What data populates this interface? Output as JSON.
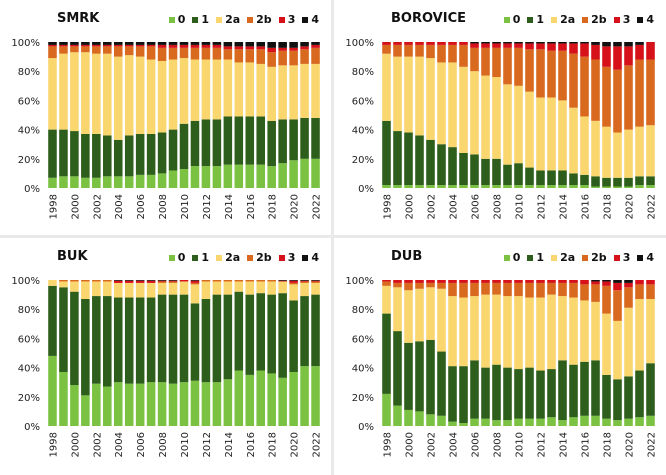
{
  "chart_data": [
    {
      "type": "bar",
      "stacked": true,
      "title": "SMRK",
      "categories": [
        "1998",
        "1999",
        "2000",
        "2001",
        "2002",
        "2003",
        "2004",
        "2005",
        "2006",
        "2007",
        "2008",
        "2009",
        "2010",
        "2011",
        "2012",
        "2013",
        "2014",
        "2015",
        "2016",
        "2017",
        "2018",
        "2019",
        "2020",
        "2021",
        "2022"
      ],
      "xtick_labels": [
        "1998",
        "2000",
        "2002",
        "2004",
        "2006",
        "2008",
        "2010",
        "2012",
        "2014",
        "2016",
        "2018",
        "2020",
        "2022"
      ],
      "yticks": [
        "0%",
        "20%",
        "40%",
        "60%",
        "80%",
        "100%"
      ],
      "ylim": [
        0,
        100
      ],
      "legend_position": "top-right",
      "series": [
        {
          "name": "0",
          "values": [
            7,
            8,
            8,
            7,
            7,
            8,
            8,
            8,
            9,
            9,
            10,
            12,
            13,
            15,
            15,
            15,
            16,
            16,
            16,
            16,
            15,
            17,
            19,
            20,
            20
          ]
        },
        {
          "name": "1",
          "values": [
            33,
            32,
            31,
            30,
            30,
            28,
            25,
            28,
            28,
            28,
            28,
            28,
            31,
            31,
            32,
            32,
            33,
            33,
            33,
            33,
            31,
            30,
            28,
            28,
            28
          ]
        },
        {
          "name": "2a",
          "values": [
            49,
            52,
            54,
            56,
            55,
            56,
            57,
            55,
            53,
            51,
            49,
            48,
            45,
            42,
            41,
            41,
            39,
            37,
            37,
            36,
            37,
            37,
            37,
            37,
            37
          ]
        },
        {
          "name": "2b",
          "values": [
            8,
            5,
            4,
            4,
            5,
            5,
            7,
            6,
            7,
            9,
            9,
            8,
            7,
            8,
            8,
            8,
            7,
            9,
            9,
            10,
            10,
            10,
            10,
            10,
            11
          ]
        },
        {
          "name": "3",
          "values": [
            1,
            1,
            1,
            1,
            1,
            1,
            1,
            1,
            1,
            1,
            2,
            2,
            2,
            2,
            2,
            2,
            2,
            2,
            2,
            2,
            3,
            2,
            2,
            2,
            2
          ]
        },
        {
          "name": "4",
          "values": [
            2,
            2,
            2,
            2,
            2,
            2,
            2,
            2,
            2,
            2,
            2,
            2,
            2,
            2,
            2,
            2,
            3,
            3,
            3,
            3,
            4,
            4,
            4,
            3,
            2
          ]
        }
      ]
    },
    {
      "type": "bar",
      "stacked": true,
      "title": "BOROVICE",
      "categories": [
        "1998",
        "1999",
        "2000",
        "2001",
        "2002",
        "2003",
        "2004",
        "2005",
        "2006",
        "2007",
        "2008",
        "2009",
        "2010",
        "2011",
        "2012",
        "2013",
        "2014",
        "2015",
        "2016",
        "2017",
        "2018",
        "2019",
        "2020",
        "2021",
        "2022"
      ],
      "xtick_labels": [
        "1998",
        "2000",
        "2002",
        "2004",
        "2006",
        "2008",
        "2010",
        "2012",
        "2014",
        "2016",
        "2018",
        "2020",
        "2022"
      ],
      "yticks": [
        "0%",
        "20%",
        "40%",
        "60%",
        "80%",
        "100%"
      ],
      "ylim": [
        0,
        100
      ],
      "legend_position": "top-right",
      "series": [
        {
          "name": "0",
          "values": [
            2,
            2,
            2,
            2,
            2,
            2,
            2,
            2,
            2,
            2,
            2,
            2,
            2,
            2,
            2,
            2,
            2,
            2,
            2,
            1,
            1,
            1,
            1,
            2,
            2
          ]
        },
        {
          "name": "1",
          "values": [
            44,
            37,
            36,
            34,
            31,
            28,
            26,
            22,
            21,
            18,
            18,
            14,
            15,
            12,
            10,
            10,
            10,
            8,
            7,
            7,
            6,
            6,
            6,
            6,
            6
          ]
        },
        {
          "name": "2a",
          "values": [
            46,
            51,
            52,
            54,
            56,
            56,
            58,
            59,
            57,
            57,
            56,
            55,
            53,
            52,
            50,
            50,
            48,
            45,
            40,
            38,
            35,
            31,
            33,
            34,
            35
          ]
        },
        {
          "name": "2b",
          "values": [
            6,
            8,
            8,
            8,
            9,
            12,
            12,
            15,
            16,
            19,
            20,
            25,
            26,
            29,
            33,
            32,
            34,
            37,
            41,
            42,
            41,
            43,
            44,
            46,
            45
          ]
        },
        {
          "name": "3",
          "values": [
            2,
            2,
            2,
            2,
            2,
            2,
            2,
            2,
            3,
            3,
            3,
            3,
            3,
            4,
            4,
            5,
            5,
            7,
            9,
            10,
            14,
            16,
            13,
            10,
            12
          ]
        },
        {
          "name": "4",
          "values": [
            0,
            0,
            0,
            0,
            0,
            0,
            0,
            0,
            1,
            1,
            1,
            1,
            1,
            1,
            1,
            1,
            1,
            1,
            1,
            2,
            3,
            3,
            3,
            2,
            0
          ]
        }
      ]
    },
    {
      "type": "bar",
      "stacked": true,
      "title": "BUK",
      "categories": [
        "1998",
        "1999",
        "2000",
        "2001",
        "2002",
        "2003",
        "2004",
        "2005",
        "2006",
        "2007",
        "2008",
        "2009",
        "2010",
        "2011",
        "2012",
        "2013",
        "2014",
        "2015",
        "2016",
        "2017",
        "2018",
        "2019",
        "2020",
        "2021",
        "2022"
      ],
      "xtick_labels": [
        "1998",
        "2000",
        "2002",
        "2004",
        "2006",
        "2008",
        "2010",
        "2012",
        "2014",
        "2016",
        "2018",
        "2020",
        "2022"
      ],
      "yticks": [
        "0%",
        "20%",
        "40%",
        "60%",
        "80%",
        "100%"
      ],
      "ylim": [
        0,
        100
      ],
      "legend_position": "top-right",
      "series": [
        {
          "name": "0",
          "values": [
            48,
            37,
            28,
            21,
            29,
            27,
            30,
            29,
            29,
            30,
            30,
            29,
            30,
            31,
            30,
            30,
            32,
            38,
            35,
            38,
            36,
            33,
            37,
            41,
            41
          ]
        },
        {
          "name": "1",
          "values": [
            48,
            58,
            64,
            66,
            60,
            62,
            58,
            59,
            59,
            58,
            60,
            61,
            60,
            53,
            57,
            60,
            58,
            54,
            55,
            53,
            54,
            58,
            49,
            48,
            49
          ]
        },
        {
          "name": "2a",
          "values": [
            4,
            4,
            7,
            12,
            10,
            10,
            10,
            10,
            10,
            10,
            8,
            8,
            9,
            13,
            12,
            9,
            9,
            7,
            9,
            8,
            9,
            8,
            11,
            9,
            8
          ]
        },
        {
          "name": "2b",
          "values": [
            0,
            1,
            1,
            1,
            1,
            1,
            0,
            0,
            0,
            0,
            1,
            1,
            0,
            1,
            1,
            1,
            1,
            1,
            1,
            1,
            1,
            0,
            1,
            1,
            1
          ]
        },
        {
          "name": "3",
          "values": [
            0,
            0,
            0,
            0,
            0,
            0,
            1.5,
            1.5,
            1.5,
            1.5,
            0.5,
            0.5,
            1,
            1.5,
            0,
            0,
            0,
            0,
            0,
            0,
            0,
            0.5,
            1.5,
            0.5,
            0.5
          ]
        },
        {
          "name": "4",
          "values": [
            0,
            0,
            0,
            0,
            0,
            0,
            0.5,
            0.5,
            0.5,
            0.5,
            0.5,
            0.5,
            0,
            0.5,
            0,
            0,
            0,
            0,
            0,
            0,
            0,
            0.5,
            0.5,
            0.5,
            0.5
          ]
        }
      ]
    },
    {
      "type": "bar",
      "stacked": true,
      "title": "DUB",
      "categories": [
        "1998",
        "1999",
        "2000",
        "2001",
        "2002",
        "2003",
        "2004",
        "2005",
        "2006",
        "2007",
        "2008",
        "2009",
        "2010",
        "2011",
        "2012",
        "2013",
        "2014",
        "2015",
        "2016",
        "2017",
        "2018",
        "2019",
        "2020",
        "2021",
        "2022"
      ],
      "xtick_labels": [
        "1998",
        "2000",
        "2002",
        "2004",
        "2006",
        "2008",
        "2010",
        "2012",
        "2014",
        "2016",
        "2018",
        "2020",
        "2022"
      ],
      "yticks": [
        "0%",
        "20%",
        "40%",
        "60%",
        "80%",
        "100%"
      ],
      "ylim": [
        0,
        100
      ],
      "legend_position": "top-right",
      "series": [
        {
          "name": "0",
          "values": [
            22,
            14,
            11,
            10,
            8,
            7,
            3,
            2,
            5,
            5,
            4,
            4,
            5,
            5,
            5,
            6,
            4,
            6,
            7,
            7,
            5,
            4,
            5,
            6,
            7
          ]
        },
        {
          "name": "1",
          "values": [
            55,
            51,
            46,
            48,
            51,
            44,
            38,
            39,
            40,
            35,
            38,
            36,
            34,
            35,
            33,
            33,
            41,
            36,
            37,
            38,
            30,
            28,
            29,
            32,
            36
          ]
        },
        {
          "name": "2a",
          "values": [
            19,
            30,
            36,
            36,
            36,
            43,
            48,
            47,
            44,
            50,
            48,
            49,
            50,
            48,
            50,
            51,
            44,
            46,
            42,
            40,
            42,
            40,
            47,
            49,
            44
          ]
        },
        {
          "name": "2b",
          "values": [
            3,
            3,
            5,
            4,
            3,
            4,
            9,
            10,
            9,
            8,
            8,
            9,
            9,
            10,
            10,
            8,
            9,
            10,
            11,
            12,
            19,
            21,
            14,
            10,
            10
          ]
        },
        {
          "name": "3",
          "values": [
            1,
            2,
            2,
            2,
            2,
            2,
            2,
            2,
            2,
            2,
            2,
            2,
            2,
            2,
            2,
            2,
            2,
            2,
            3,
            2,
            3,
            5,
            3,
            3,
            3
          ]
        },
        {
          "name": "4",
          "values": [
            0,
            0,
            0,
            0,
            0,
            0,
            0,
            0,
            0,
            0,
            0,
            0,
            0,
            0,
            0,
            0,
            0,
            0,
            0,
            1,
            1,
            2,
            2,
            0,
            0
          ]
        }
      ]
    }
  ],
  "legend": [
    {
      "label": "0",
      "color": "#7cc242"
    },
    {
      "label": "1",
      "color": "#2e5e1b"
    },
    {
      "label": "2a",
      "color": "#f9d66e"
    },
    {
      "label": "2b",
      "color": "#d9691f"
    },
    {
      "label": "3",
      "color": "#d6111a"
    },
    {
      "label": "4",
      "color": "#111111"
    }
  ]
}
